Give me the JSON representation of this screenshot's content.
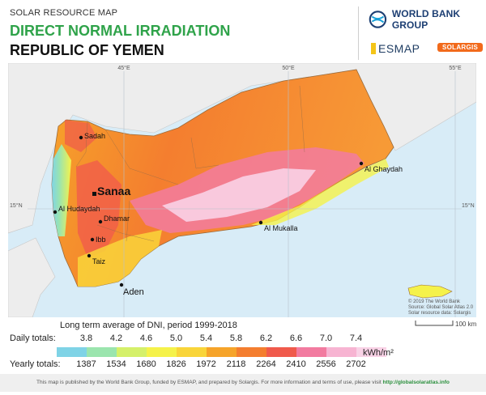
{
  "header": {
    "map_type": "SOLAR RESOURCE MAP",
    "title": "DIRECT NORMAL IRRADIATION",
    "country": "REPUBLIC OF YEMEN"
  },
  "logos": {
    "world_bank": "WORLD BANK GROUP",
    "esmap": "ESMAP",
    "solargis": "SOLARGIS"
  },
  "map": {
    "graticule": {
      "lon_labels": [
        "45°E",
        "50°E",
        "55°E"
      ],
      "lat_labels": [
        "15°N",
        "15°N"
      ]
    },
    "cities": [
      {
        "name": "Sadah",
        "capital": false
      },
      {
        "name": "Sanaa",
        "capital": true
      },
      {
        "name": "Al Hudaydah",
        "capital": false
      },
      {
        "name": "Dhamar",
        "capital": false
      },
      {
        "name": "Ibb",
        "capital": false
      },
      {
        "name": "Taiz",
        "capital": false
      },
      {
        "name": "Aden",
        "capital": false
      },
      {
        "name": "Al Mukalla",
        "capital": false
      },
      {
        "name": "Al Ghaydah",
        "capital": false
      }
    ],
    "credits": [
      "© 2019 The World Bank",
      "Source: Global Solar Atlas 2.0",
      "Solar resource data: Solargis"
    ]
  },
  "scale": {
    "label": "100 km"
  },
  "legend": {
    "title": "Long term average of DNI, period 1999-2018",
    "daily_label": "Daily totals:",
    "yearly_label": "Yearly totals:",
    "unit": "kWh/m²",
    "daily_values": [
      "3.8",
      "4.2",
      "4.6",
      "5.0",
      "5.4",
      "5.8",
      "6.2",
      "6.6",
      "7.0",
      "7.4"
    ],
    "yearly_values": [
      "1387",
      "1534",
      "1680",
      "1826",
      "1972",
      "2118",
      "2264",
      "2410",
      "2556",
      "2702"
    ],
    "colors": [
      "#7fd3e6",
      "#9be5ae",
      "#d5f06a",
      "#f5f24a",
      "#f9d53a",
      "#f6a42a",
      "#f47e2f",
      "#f05a4c",
      "#f27ba0",
      "#f7b4d2",
      "#f9d2e6"
    ]
  },
  "footer": {
    "text": "This map is published by the World Bank Group, funded by ESMAP, and prepared by Solargis. For more information and terms of use, please visit",
    "link": "http://globalsolaratlas.info"
  }
}
